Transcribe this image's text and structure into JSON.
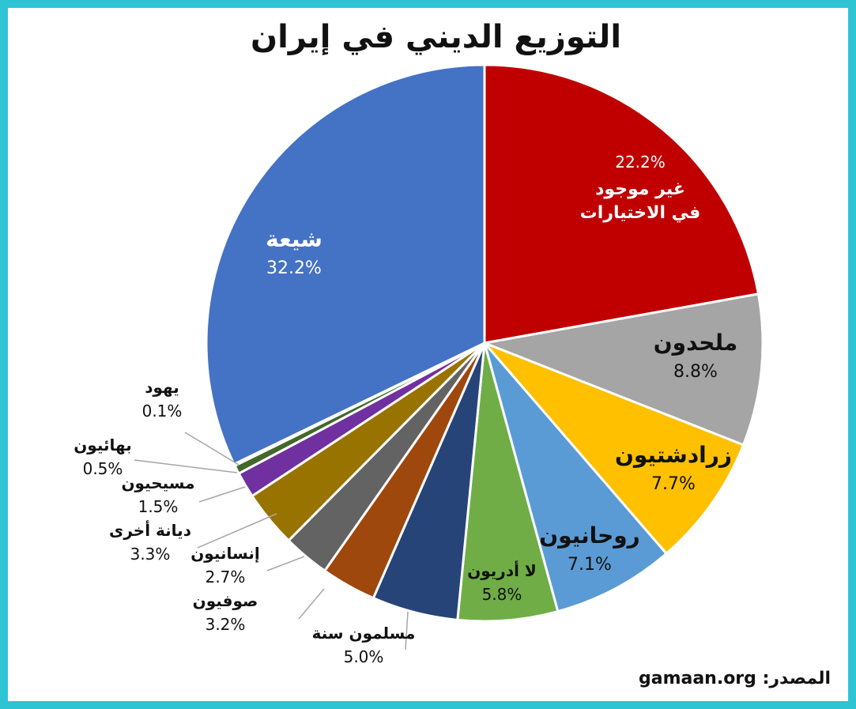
{
  "title": "التوزيع الديني في إيران",
  "source": {
    "label": "المصدر:",
    "value": "gamaan.org"
  },
  "chart_data": {
    "type": "pie",
    "title": "التوزيع الديني في إيران",
    "start": "12 o'clock",
    "direction": "clockwise",
    "slices": [
      {
        "label": "غير موجود في الاختيارات",
        "value": 22.2,
        "value_label": "22.2%",
        "color": "#c00000"
      },
      {
        "label": "ملحدون",
        "value": 8.8,
        "value_label": "8.8%",
        "color": "#a5a5a5"
      },
      {
        "label": "زرادشتيون",
        "value": 7.7,
        "value_label": "7.7%",
        "color": "#ffc000"
      },
      {
        "label": "روحانيون",
        "value": 7.1,
        "value_label": "7.1%",
        "color": "#5b9bd5"
      },
      {
        "label": "لا أدريون",
        "value": 5.8,
        "value_label": "5.8%",
        "color": "#70ad47"
      },
      {
        "label": "مسلمون سنة",
        "value": 5.0,
        "value_label": "5.0%",
        "color": "#264478"
      },
      {
        "label": "صوفيون",
        "value": 3.2,
        "value_label": "3.2%",
        "color": "#9e480e"
      },
      {
        "label": "إنسانيون",
        "value": 2.7,
        "value_label": "2.7%",
        "color": "#636363"
      },
      {
        "label": "ديانة أخرى",
        "value": 3.3,
        "value_label": "3.3%",
        "color": "#997300"
      },
      {
        "label": "مسيحيون",
        "value": 1.5,
        "value_label": "1.5%",
        "color": "#7030a0"
      },
      {
        "label": "بهائيون",
        "value": 0.5,
        "value_label": "0.5%",
        "color": "#43682b"
      },
      {
        "label": "يهود",
        "value": 0.1,
        "value_label": "0.1%",
        "color": "#ffd966"
      },
      {
        "label": "شيعة",
        "value": 32.2,
        "value_label": "32.2%",
        "color": "#4472c4"
      }
    ]
  }
}
